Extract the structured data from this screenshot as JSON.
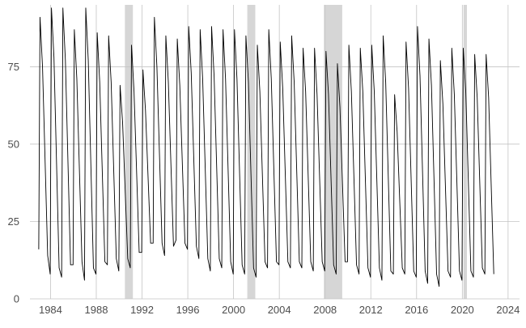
{
  "chart_data": {
    "type": "line",
    "title": "",
    "xlabel": "",
    "ylabel": "",
    "xlim": [
      1982.2,
      2025.0
    ],
    "ylim": [
      0,
      95
    ],
    "x_ticks": [
      1984,
      1988,
      1992,
      1996,
      2000,
      2004,
      2008,
      2012,
      2016,
      2020,
      2024
    ],
    "x_tick_labels": [
      "1984",
      "1988",
      "1992",
      "1996",
      "2000",
      "2004",
      "2008",
      "2012",
      "2016",
      "2020",
      "2024"
    ],
    "y_ticks": [
      0,
      25,
      50,
      75
    ],
    "y_tick_labels": [
      "0",
      "25",
      "50",
      "75"
    ],
    "grid": true,
    "legend": "none",
    "recession_bands": [
      {
        "start": 1990.5,
        "end": 1991.2
      },
      {
        "start": 2001.2,
        "end": 2001.9
      },
      {
        "start": 2007.9,
        "end": 2009.5
      },
      {
        "start": 2020.1,
        "end": 2020.4
      }
    ],
    "annual_cycle": {
      "years": [
        1983,
        1984,
        1985,
        1986,
        1987,
        1988,
        1989,
        1990,
        1991,
        1992,
        1993,
        1994,
        1995,
        1996,
        1997,
        1998,
        1999,
        2000,
        2001,
        2002,
        2003,
        2004,
        2005,
        2006,
        2007,
        2008,
        2009,
        2010,
        2011,
        2012,
        2013,
        2014,
        2015,
        2016,
        2017,
        2018,
        2019,
        2020,
        2021,
        2022
      ],
      "peaks": [
        91,
        94,
        94,
        87,
        94,
        86,
        85,
        69,
        82,
        74,
        91,
        85,
        84,
        88,
        87,
        88,
        87,
        87,
        85,
        82,
        87,
        83,
        85,
        81,
        81,
        80,
        76,
        82,
        81,
        82,
        85,
        66,
        83,
        88,
        84,
        77,
        81,
        81,
        79,
        79
      ],
      "troughs": [
        16,
        8,
        7,
        11,
        6,
        8,
        11,
        9,
        10,
        15,
        18,
        14,
        19,
        16,
        13,
        9,
        10,
        8,
        8,
        7,
        10,
        11,
        10,
        10,
        9,
        9,
        8,
        12,
        8,
        7,
        6,
        8,
        8,
        7,
        5,
        4,
        7,
        6,
        7,
        8
      ]
    },
    "series": [
      {
        "x": [
          1982.97,
          1983.08,
          1983.3,
          1983.75,
          1983.97,
          1984.08,
          1984.3,
          1984.75,
          1984.97,
          1985.08,
          1985.3,
          1985.75,
          1985.97,
          1986.08,
          1986.3,
          1986.75,
          1986.97,
          1987.08,
          1987.3,
          1987.75,
          1987.97,
          1988.08,
          1988.3,
          1988.75,
          1988.97,
          1989.08,
          1989.3,
          1989.75,
          1989.97,
          1990.08,
          1990.3,
          1990.75,
          1990.97,
          1991.08,
          1991.3,
          1991.75,
          1991.97,
          1992.08,
          1992.3,
          1992.75,
          1992.97,
          1993.08,
          1993.3,
          1993.75,
          1993.97,
          1994.08,
          1994.3,
          1994.75,
          1994.97,
          1995.08,
          1995.3,
          1995.75,
          1995.97,
          1996.08,
          1996.3,
          1996.75,
          1996.97,
          1997.08,
          1997.3,
          1997.75,
          1997.97,
          1998.08,
          1998.3,
          1998.75,
          1998.97,
          1999.08,
          1999.3,
          1999.75,
          1999.97,
          2000.08,
          2000.3,
          2000.75,
          2000.97,
          2001.08,
          2001.3,
          2001.75,
          2001.97,
          2002.08,
          2002.3,
          2002.75,
          2002.97,
          2003.08,
          2003.3,
          2003.75,
          2003.97,
          2004.08,
          2004.3,
          2004.75,
          2004.97,
          2005.08,
          2005.3,
          2005.75,
          2005.97,
          2006.08,
          2006.3,
          2006.75,
          2006.97,
          2007.08,
          2007.3,
          2007.75,
          2007.97,
          2008.08,
          2008.3,
          2008.75,
          2008.97,
          2009.08,
          2009.3,
          2009.75,
          2009.97,
          2010.08,
          2010.3,
          2010.75,
          2010.97,
          2011.08,
          2011.3,
          2011.75,
          2011.97,
          2012.08,
          2012.3,
          2012.75,
          2012.97,
          2013.08,
          2013.3,
          2013.75,
          2013.97,
          2014.08,
          2014.3,
          2014.75,
          2014.97,
          2015.08,
          2015.3,
          2015.75,
          2015.97,
          2016.08,
          2016.3,
          2016.75,
          2016.97,
          2017.08,
          2017.3,
          2017.75,
          2017.97,
          2018.08,
          2018.3,
          2018.75,
          2018.97,
          2019.08,
          2019.3,
          2019.75,
          2019.97,
          2020.08,
          2020.3,
          2020.75,
          2020.97,
          2021.08,
          2021.3,
          2021.75,
          2021.97,
          2022.08,
          2022.3,
          2022.75
        ],
        "y": [
          16,
          91,
          75,
          14,
          8,
          94,
          78,
          10,
          7,
          94,
          77,
          11,
          11,
          87,
          71,
          12,
          6,
          94,
          77,
          10,
          8,
          86,
          70,
          12,
          11,
          85,
          70,
          13,
          9,
          69,
          57,
          13,
          10,
          82,
          67,
          15,
          15,
          74,
          61,
          18,
          18,
          91,
          75,
          18,
          14,
          85,
          70,
          17,
          19,
          84,
          69,
          18,
          16,
          88,
          73,
          17,
          13,
          87,
          71,
          13,
          9,
          88,
          72,
          13,
          10,
          87,
          71,
          12,
          8,
          87,
          71,
          11,
          8,
          85,
          70,
          10,
          7,
          82,
          67,
          12,
          10,
          87,
          71,
          12,
          11,
          83,
          68,
          12,
          10,
          85,
          70,
          12,
          10,
          81,
          67,
          12,
          9,
          81,
          66,
          12,
          9,
          80,
          66,
          11,
          8,
          76,
          62,
          12,
          12,
          82,
          67,
          11,
          8,
          81,
          67,
          10,
          7,
          82,
          67,
          10,
          6,
          85,
          70,
          9,
          8,
          66,
          54,
          10,
          8,
          83,
          68,
          9,
          7,
          88,
          72,
          9,
          5,
          84,
          69,
          8,
          4,
          77,
          63,
          9,
          7,
          81,
          66,
          9,
          6,
          81,
          67,
          9,
          7,
          79,
          65,
          10,
          8,
          79,
          65,
          8
        ]
      }
    ]
  }
}
